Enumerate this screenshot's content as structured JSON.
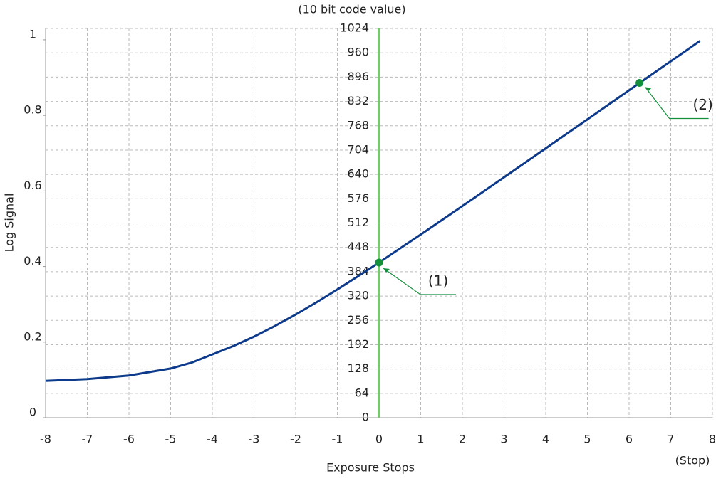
{
  "chart_data": {
    "type": "line",
    "title": "(10 bit code value)",
    "x_label": "Exposure Stops",
    "x_unit": "(Stop)",
    "y2_label": "Log Signal",
    "x": [
      -8,
      -7,
      -6,
      -5,
      -4.5,
      -4,
      -3.5,
      -3,
      -2.5,
      -2,
      -1.5,
      -1,
      -0.5,
      0,
      1,
      2,
      3,
      4,
      5,
      6,
      7,
      7.7
    ],
    "series": [
      {
        "color": "#0d3a8a",
        "axis": "y2",
        "values": [
          0.0975,
          0.1022,
          0.1115,
          0.1301,
          0.1455,
          0.1674,
          0.1894,
          0.2145,
          0.2425,
          0.2729,
          0.3053,
          0.3393,
          0.3745,
          0.4106,
          0.4846,
          0.56,
          0.6362,
          0.7127,
          0.7894,
          0.8664,
          0.9432,
          0.997
        ]
      }
    ],
    "xlim": [
      -8,
      8
    ],
    "xticks": [
      -8,
      -7,
      -6,
      -5,
      -4,
      -3,
      -2,
      -1,
      0,
      1,
      2,
      3,
      4,
      5,
      6,
      7,
      8
    ],
    "ylim": [
      0,
      1024
    ],
    "yticks": [
      0,
      64,
      128,
      192,
      256,
      320,
      384,
      448,
      512,
      576,
      640,
      704,
      768,
      832,
      896,
      960,
      1024
    ],
    "y2lim": [
      0,
      1.03
    ],
    "y2ticks": [
      0,
      0.2,
      0.4,
      0.6,
      0.8,
      1
    ],
    "grid": true,
    "annotations": [
      {
        "text": "(1)",
        "x": 0,
        "y": 0.4106,
        "color": "#12903a"
      },
      {
        "text": "(2)",
        "x": 6.25,
        "y": 0.886,
        "color": "#12903a"
      }
    ],
    "zero_line_color": "#7cc576"
  }
}
